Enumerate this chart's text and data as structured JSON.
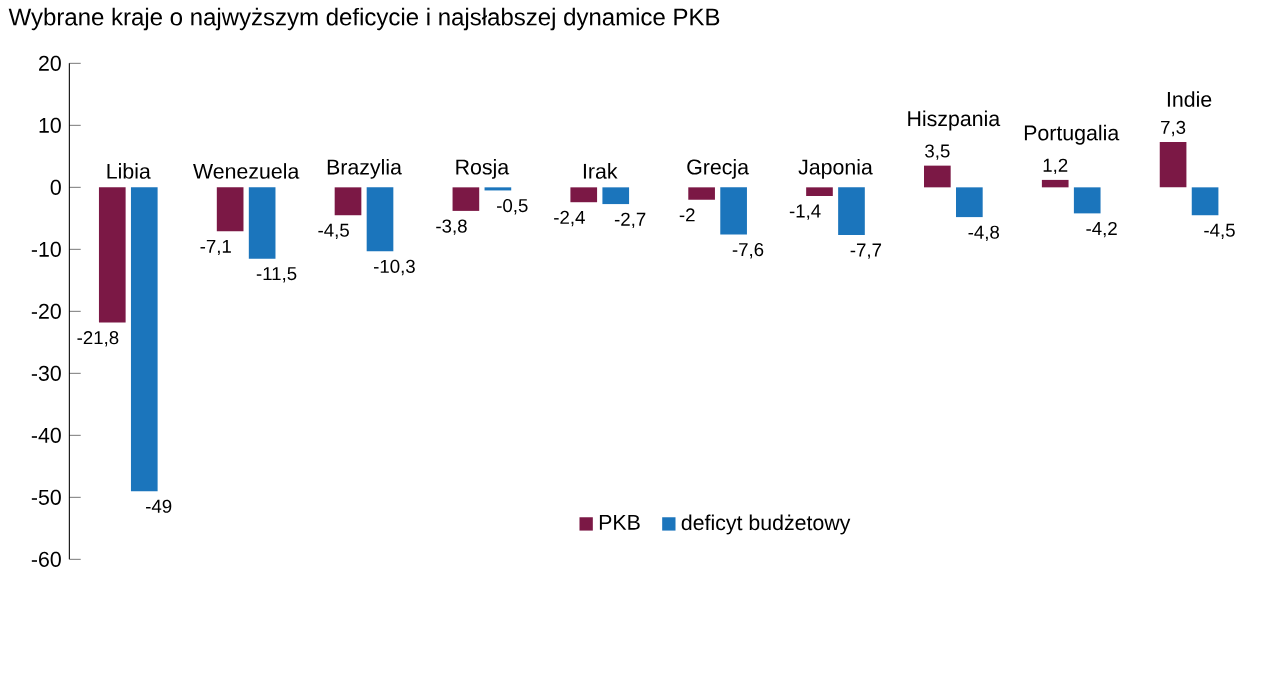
{
  "chart_data": {
    "type": "bar",
    "title": "Wybrane kraje o najwyższym deficycie i najsłabszej dynamice PKB",
    "categories": [
      "Libia",
      "Wenezuela",
      "Brazylia",
      "Rosja",
      "Irak",
      "Grecja",
      "Japonia",
      "Hiszpania",
      "Portugalia",
      "Indie"
    ],
    "series": [
      {
        "name": "PKB",
        "color": "#7b1845",
        "values": [
          -21.8,
          -7.1,
          -4.5,
          -3.8,
          -2.4,
          -2,
          -1.4,
          3.5,
          1.2,
          7.3
        ],
        "value_labels": [
          "-21,8",
          "-7,1",
          "-4,5",
          "-3,8",
          "-2,4",
          "-2",
          "-1,4",
          "3,5",
          "1,2",
          "7,3"
        ]
      },
      {
        "name": "deficyt budżetowy",
        "color": "#1b75bc",
        "values": [
          -49,
          -11.5,
          -10.3,
          -0.5,
          -2.7,
          -7.6,
          -7.7,
          -4.8,
          -4.2,
          -4.5
        ],
        "value_labels": [
          "-49",
          "-11,5",
          "-10,3",
          "-0,5",
          "-2,7",
          "-7,6",
          "-7,7",
          "-4,8",
          "-4,2",
          "-4,5"
        ]
      }
    ],
    "ylim": [
      -60,
      20
    ],
    "yticks": [
      -60,
      -50,
      -40,
      -30,
      -20,
      -10,
      0,
      10,
      20
    ],
    "grid": false,
    "legend": "bottom"
  }
}
